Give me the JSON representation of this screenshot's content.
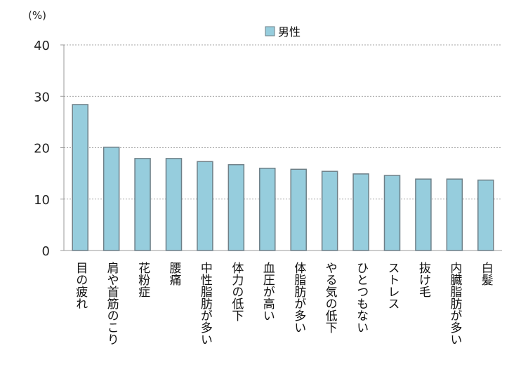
{
  "chart_data": {
    "type": "bar",
    "unit_label": "(%)",
    "ylim": [
      0,
      40
    ],
    "yticks": [
      0,
      10,
      20,
      30,
      40
    ],
    "grid": true,
    "legend_position": "top-center",
    "colors": {
      "bar": "#96cddd",
      "bar_edge": "#6e7f87",
      "grid": "#888888"
    },
    "categories": [
      "目の疲れ",
      "肩や首筋のこり",
      "花粉症",
      "腰痛",
      "中性脂肪が多い",
      "体力の低下",
      "血圧が高い",
      "体脂肪が多い",
      "やる気の低下",
      "ひとつもない",
      "ストレス",
      "抜け毛",
      "内臓脂肪が多い",
      "白髪"
    ],
    "series": [
      {
        "name": "男性",
        "values": [
          28.4,
          20.1,
          17.9,
          17.9,
          17.3,
          16.7,
          16.0,
          15.8,
          15.4,
          14.9,
          14.6,
          13.9,
          13.9,
          13.7
        ]
      }
    ]
  }
}
